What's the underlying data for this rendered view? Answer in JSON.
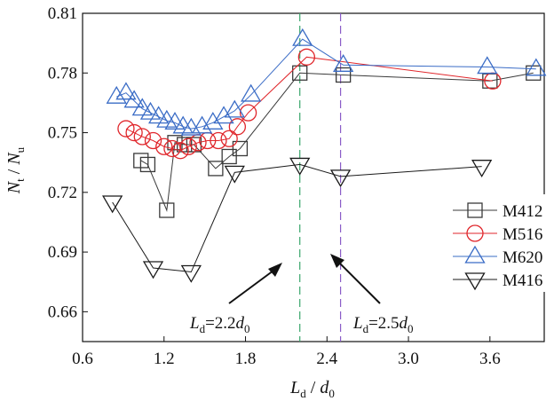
{
  "chart_data": {
    "type": "line",
    "title": "",
    "xlabel": {
      "main": "L",
      "sub": "d",
      "sep": " / ",
      "main2": "d",
      "sub2": "0"
    },
    "ylabel": {
      "main": "N",
      "sub": "t",
      "sep": " / ",
      "main2": "N",
      "sub2": "u"
    },
    "xlim": [
      0.6,
      4.0
    ],
    "ylim": [
      0.645,
      0.81
    ],
    "xticks": [
      0.6,
      1.2,
      1.8,
      2.4,
      3.0,
      3.6
    ],
    "xtick_labels": [
      "0.6",
      "1.2",
      "1.8",
      "2.4",
      "3.0",
      "3.6"
    ],
    "yticks": [
      0.66,
      0.69,
      0.72,
      0.75,
      0.78,
      0.81
    ],
    "ytick_labels": [
      "0.66",
      "0.69",
      "0.72",
      "0.75",
      "0.78",
      "0.81"
    ],
    "grid": false,
    "legend_position": "right",
    "series": [
      {
        "name": "M412",
        "marker": "square",
        "color": "#3a3a3a",
        "points": [
          [
            1.03,
            0.736
          ],
          [
            1.08,
            0.734
          ],
          [
            1.22,
            0.711
          ],
          [
            1.28,
            0.745
          ],
          [
            1.35,
            0.744
          ],
          [
            1.42,
            0.744
          ],
          [
            1.58,
            0.732
          ],
          [
            1.68,
            0.738
          ],
          [
            1.76,
            0.742
          ],
          [
            2.2,
            0.78
          ],
          [
            2.52,
            0.779
          ],
          [
            3.6,
            0.776
          ],
          [
            3.92,
            0.78
          ]
        ]
      },
      {
        "name": "M516",
        "marker": "circle",
        "color": "#e0262b",
        "points": [
          [
            0.92,
            0.752
          ],
          [
            0.98,
            0.75
          ],
          [
            1.04,
            0.748
          ],
          [
            1.12,
            0.746
          ],
          [
            1.2,
            0.743
          ],
          [
            1.26,
            0.742
          ],
          [
            1.32,
            0.741
          ],
          [
            1.38,
            0.743
          ],
          [
            1.45,
            0.745
          ],
          [
            1.52,
            0.746
          ],
          [
            1.6,
            0.746
          ],
          [
            1.68,
            0.747
          ],
          [
            1.74,
            0.753
          ],
          [
            1.82,
            0.76
          ],
          [
            2.25,
            0.788
          ],
          [
            3.62,
            0.776
          ]
        ]
      },
      {
        "name": "M620",
        "marker": "triangle-up",
        "color": "#3a6cc6",
        "points": [
          [
            0.85,
            0.768
          ],
          [
            0.92,
            0.77
          ],
          [
            0.98,
            0.766
          ],
          [
            1.04,
            0.762
          ],
          [
            1.1,
            0.76
          ],
          [
            1.16,
            0.758
          ],
          [
            1.22,
            0.756
          ],
          [
            1.28,
            0.755
          ],
          [
            1.34,
            0.753
          ],
          [
            1.4,
            0.752
          ],
          [
            1.48,
            0.753
          ],
          [
            1.56,
            0.755
          ],
          [
            1.64,
            0.758
          ],
          [
            1.72,
            0.761
          ],
          [
            1.84,
            0.769
          ],
          [
            2.22,
            0.797
          ],
          [
            2.52,
            0.784
          ],
          [
            3.58,
            0.783
          ],
          [
            3.94,
            0.782
          ]
        ]
      },
      {
        "name": "M416",
        "marker": "triangle-down",
        "color": "#1a1a1a",
        "points": [
          [
            0.82,
            0.715
          ],
          [
            1.12,
            0.682
          ],
          [
            1.4,
            0.68
          ],
          [
            1.72,
            0.73
          ],
          [
            2.2,
            0.734
          ],
          [
            2.5,
            0.728
          ],
          [
            3.54,
            0.733
          ]
        ]
      }
    ],
    "reference_lines": [
      {
        "x": 2.2,
        "color": "#3aa66a"
      },
      {
        "x": 2.5,
        "color": "#8a5cc8"
      }
    ],
    "annotations": [
      {
        "main": "L",
        "sub": "d",
        "rest": "=2.2",
        "main2": "d",
        "sub2": "0"
      },
      {
        "main": "L",
        "sub": "d",
        "rest": "=2.5",
        "main2": "d",
        "sub2": "0"
      }
    ]
  }
}
